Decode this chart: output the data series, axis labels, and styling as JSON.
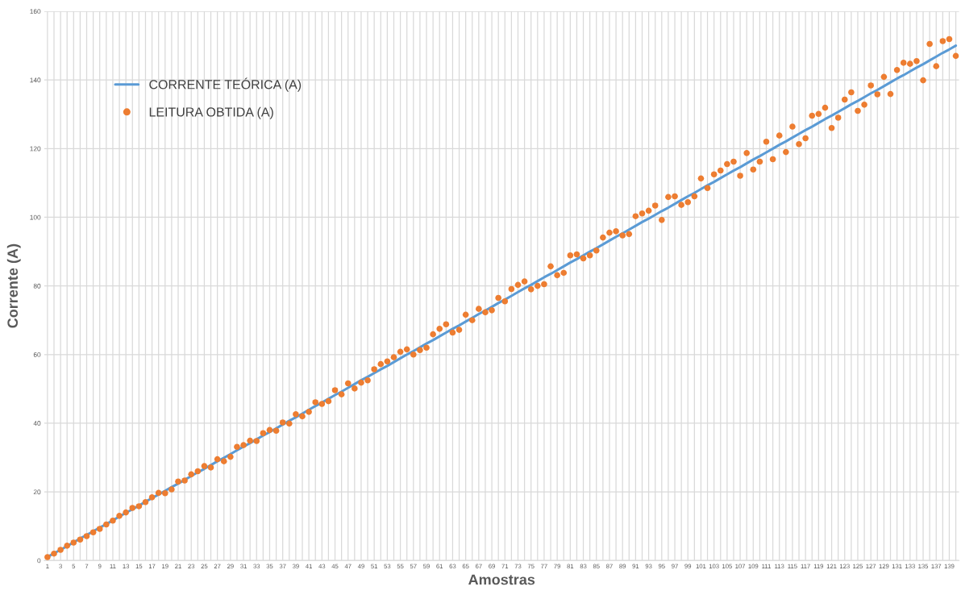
{
  "chart_data": {
    "type": "line",
    "xlabel": "Amostras",
    "ylabel": "Corrente (A)",
    "categories": [
      "1",
      null,
      "3",
      null,
      "5",
      null,
      "7",
      null,
      "9",
      null,
      "11",
      null,
      "13",
      null,
      "15",
      null,
      "17",
      null,
      "19",
      null,
      "21",
      null,
      "23",
      null,
      "25",
      null,
      "27",
      null,
      "29",
      null,
      "31",
      null,
      "33",
      null,
      "35",
      null,
      "37",
      null,
      "39",
      null,
      "41",
      null,
      "43",
      null,
      "45",
      null,
      "47",
      null,
      "49",
      null,
      "51",
      null,
      "53",
      null,
      "55",
      null,
      "57",
      null,
      "59",
      null,
      "61",
      null,
      "63",
      null,
      "65",
      null,
      "67",
      null,
      "69",
      null,
      "71",
      null,
      "73",
      null,
      "75",
      null,
      "77",
      null,
      "79",
      null,
      "81",
      null,
      "83",
      null,
      "85",
      null,
      "87",
      null,
      "89",
      null,
      "91",
      null,
      "93",
      null,
      "95",
      null,
      "97",
      null,
      "99",
      null,
      "101",
      null,
      "103",
      null,
      "105",
      null,
      "107",
      null,
      "109",
      null,
      "111",
      null,
      "113",
      null,
      "115",
      null,
      "117",
      null,
      "119",
      null,
      "121",
      null,
      "123",
      null,
      "125",
      null,
      "127",
      null,
      "129",
      null,
      "131",
      null,
      "133",
      null,
      "135",
      null,
      "137",
      null,
      "139",
      null
    ],
    "series": [
      {
        "name": "CORRENTE TEÓRICA (A)",
        "color": "#5b9bd5",
        "marker": "none",
        "values": [
          1.0,
          2.1,
          3.1,
          4.2,
          5.3,
          6.4,
          7.4,
          8.5,
          9.6,
          10.6,
          11.7,
          12.8,
          13.9,
          14.9,
          16.0,
          17.1,
          18.2,
          19.2,
          20.3,
          21.4,
          22.4,
          23.5,
          24.6,
          25.7,
          26.7,
          27.8,
          28.9,
          29.9,
          31.0,
          32.1,
          33.2,
          34.2,
          35.3,
          36.4,
          37.4,
          38.5,
          39.6,
          40.7,
          41.7,
          42.8,
          43.9,
          45.0,
          46.0,
          47.1,
          48.2,
          49.2,
          50.3,
          51.4,
          52.5,
          53.5,
          54.6,
          55.7,
          56.7,
          57.8,
          58.9,
          60.0,
          61.0,
          62.1,
          63.2,
          64.2,
          65.3,
          66.4,
          67.5,
          68.5,
          69.6,
          70.7,
          71.8,
          72.8,
          73.9,
          75.0,
          76.0,
          77.1,
          78.2,
          79.3,
          80.3,
          81.4,
          82.5,
          83.5,
          84.6,
          85.7,
          86.8,
          87.8,
          88.9,
          90.0,
          91.0,
          92.1,
          93.2,
          94.3,
          95.3,
          96.4,
          97.5,
          98.6,
          99.6,
          100.7,
          101.8,
          102.8,
          103.9,
          105.0,
          106.1,
          107.1,
          108.2,
          109.3,
          110.3,
          111.4,
          112.5,
          113.6,
          114.6,
          115.7,
          116.8,
          117.8,
          118.9,
          120.0,
          121.1,
          122.1,
          123.2,
          124.3,
          125.4,
          126.4,
          127.5,
          128.6,
          129.6,
          130.7,
          131.8,
          132.9,
          133.9,
          135.0,
          136.1,
          137.1,
          138.2,
          139.3,
          140.4,
          141.4,
          142.5,
          143.6,
          144.6,
          145.7,
          146.8,
          147.9,
          148.9,
          150.0
        ]
      },
      {
        "name": "LEITURA OBTIDA (A)",
        "type": "scatter",
        "color": "#ed7d31",
        "marker": "circle",
        "values": [
          1.0,
          2.0,
          3.1,
          4.3,
          5.2,
          6.1,
          7.1,
          8.2,
          9.2,
          10.5,
          11.6,
          13.0,
          14.0,
          15.3,
          15.8,
          17.0,
          18.4,
          19.7,
          19.6,
          20.7,
          23.0,
          23.3,
          25.1,
          26.0,
          27.5,
          27.1,
          29.5,
          28.9,
          30.2,
          33.1,
          33.6,
          34.9,
          34.8,
          37.1,
          38.0,
          37.8,
          40.2,
          39.9,
          42.6,
          42.0,
          43.3,
          46.1,
          45.6,
          46.4,
          49.6,
          48.4,
          51.6,
          50.1,
          51.8,
          52.5,
          55.7,
          57.2,
          58.0,
          59.2,
          60.8,
          61.5,
          60.0,
          61.3,
          62.0,
          65.9,
          67.5,
          68.8,
          66.4,
          67.2,
          71.6,
          70.0,
          73.3,
          72.3,
          72.9,
          76.5,
          75.5,
          79.1,
          80.3,
          81.3,
          79.0,
          80.0,
          80.5,
          85.7,
          83.1,
          83.8,
          88.9,
          89.2,
          88.0,
          88.9,
          90.3,
          94.1,
          95.5,
          95.9,
          94.7,
          95.1,
          100.3,
          101.1,
          101.9,
          103.4,
          99.2,
          105.9,
          106.1,
          103.6,
          104.4,
          106.1,
          111.3,
          108.5,
          112.5,
          113.6,
          115.5,
          116.2,
          112.1,
          118.7,
          113.9,
          116.2,
          122.0,
          116.9,
          123.8,
          119.0,
          126.4,
          121.3,
          123.0,
          129.6,
          130.1,
          131.9,
          126.0,
          129.0,
          134.3,
          136.4,
          131.0,
          132.8,
          138.4,
          135.8,
          140.9,
          135.9,
          142.9,
          145.0,
          144.7,
          145.5,
          139.9,
          150.5,
          144.0,
          151.3,
          151.9,
          147.0
        ]
      }
    ],
    "ylim": [
      0,
      160
    ],
    "yticks": [
      0,
      20,
      40,
      60,
      80,
      100,
      120,
      140,
      160
    ],
    "grid": true,
    "legend": "top left"
  }
}
